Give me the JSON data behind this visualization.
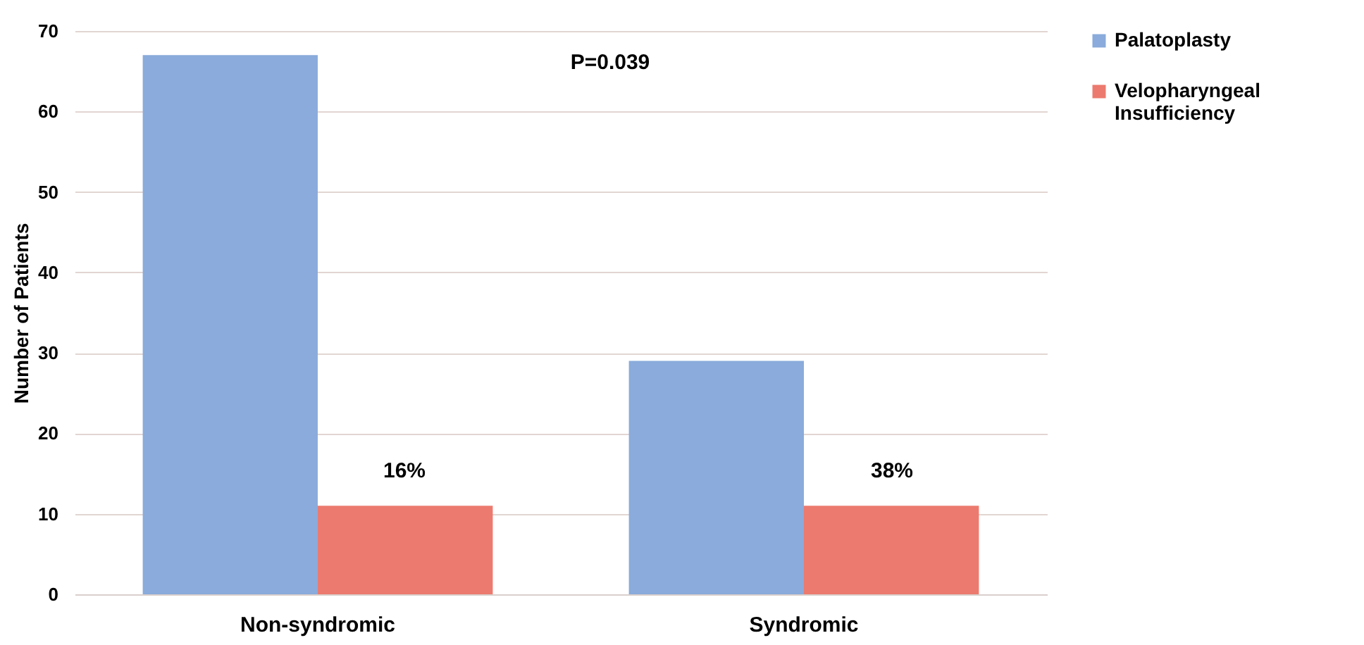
{
  "chart_data": {
    "type": "bar",
    "ylabel": "Number of Patients",
    "categories": [
      "Non-syndromic",
      "Syndromic"
    ],
    "series": [
      {
        "name": "Palatoplasty",
        "color": "#8aabdb",
        "values": [
          67,
          29
        ]
      },
      {
        "name": "Velopharyngeal Insufficiency",
        "color": "#ec7a6e",
        "values": [
          11,
          11
        ]
      }
    ],
    "ylim": [
      0,
      70
    ],
    "yticks": [
      0,
      10,
      20,
      30,
      40,
      50,
      60,
      70
    ],
    "grid": "y",
    "legend": "right",
    "annotations": [
      "P=0.039",
      "16%",
      "38%"
    ]
  }
}
